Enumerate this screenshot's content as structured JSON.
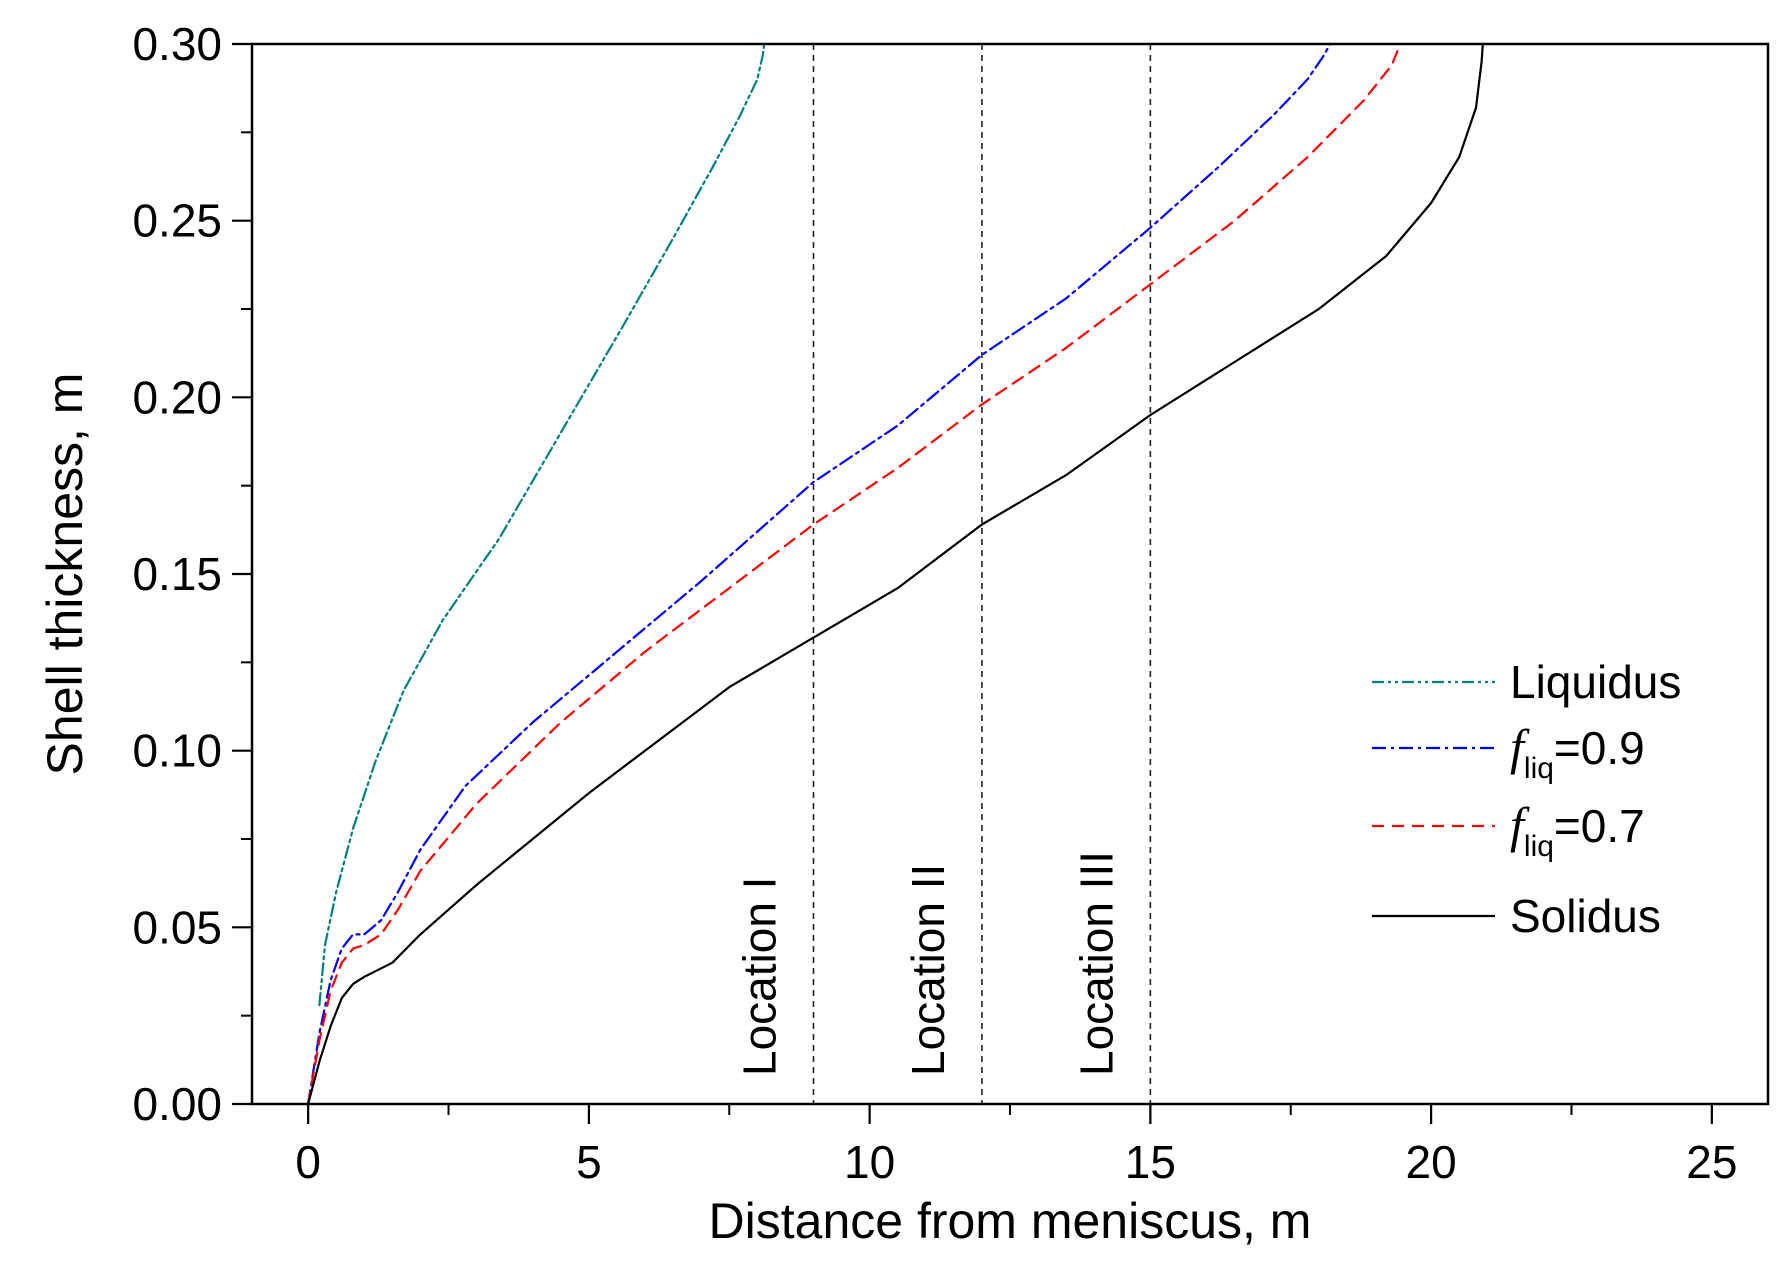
{
  "chart_data": {
    "type": "line",
    "title": "",
    "xlabel": "Distance from meniscus, m",
    "ylabel": "Shell thickness, m",
    "xlim": [
      -1,
      26
    ],
    "ylim": [
      0,
      0.3
    ],
    "xticks": [
      0,
      5,
      10,
      15,
      20,
      25
    ],
    "xtick_labels": [
      "0",
      "5",
      "10",
      "15",
      "20",
      "25"
    ],
    "x_minor_step": 2.5,
    "yticks": [
      0.0,
      0.05,
      0.1,
      0.15,
      0.2,
      0.25,
      0.3
    ],
    "ytick_labels": [
      "0.00",
      "0.05",
      "0.10",
      "0.15",
      "0.20",
      "0.25",
      "0.30"
    ],
    "y_minor_step": 0.025,
    "grid": false,
    "legend_position": "right",
    "series": [
      {
        "name": "Liquidus",
        "color": "#008080",
        "dash": "dash-dot-dot",
        "x": [
          0.2,
          0.3,
          0.5,
          0.8,
          1.2,
          1.7,
          2.4,
          3.4,
          4.5,
          5.6,
          6.5,
          7.2,
          7.7,
          8.0,
          8.1,
          8.12
        ],
        "y": [
          0.028,
          0.045,
          0.06,
          0.078,
          0.097,
          0.117,
          0.137,
          0.16,
          0.19,
          0.22,
          0.245,
          0.265,
          0.28,
          0.29,
          0.297,
          0.3
        ]
      },
      {
        "name": "f_liq=0.9",
        "label_prefix": "f",
        "label_sub": "liq",
        "label_suffix": "=0.9",
        "color": "#0000ff",
        "dash": "dash-dot",
        "x": [
          0.0,
          0.2,
          0.4,
          0.6,
          0.8,
          1.0,
          1.3,
          1.6,
          2.0,
          2.8,
          4.0,
          5.5,
          7.0,
          9.0,
          10.5,
          12.0,
          13.5,
          15.0,
          16.2,
          17.2,
          17.8,
          18.1,
          18.2
        ],
        "y": [
          0.0,
          0.02,
          0.035,
          0.044,
          0.048,
          0.048,
          0.052,
          0.06,
          0.072,
          0.09,
          0.108,
          0.128,
          0.148,
          0.176,
          0.192,
          0.212,
          0.228,
          0.248,
          0.265,
          0.28,
          0.29,
          0.297,
          0.3
        ]
      },
      {
        "name": "f_liq=0.7",
        "label_prefix": "f",
        "label_sub": "liq",
        "label_suffix": "=0.7",
        "color": "#ff0000",
        "dash": "dash",
        "x": [
          0.0,
          0.2,
          0.4,
          0.6,
          0.8,
          1.0,
          1.3,
          1.6,
          2.0,
          3.0,
          4.5,
          6.0,
          7.5,
          9.0,
          10.5,
          12.0,
          13.5,
          15.0,
          16.5,
          17.8,
          18.8,
          19.3,
          19.4
        ],
        "y": [
          0.0,
          0.018,
          0.032,
          0.04,
          0.044,
          0.045,
          0.048,
          0.055,
          0.066,
          0.085,
          0.108,
          0.128,
          0.146,
          0.164,
          0.18,
          0.198,
          0.214,
          0.232,
          0.25,
          0.268,
          0.284,
          0.294,
          0.298
        ]
      },
      {
        "name": "Solidus",
        "color": "#000000",
        "dash": "solid",
        "x": [
          0.0,
          0.2,
          0.4,
          0.6,
          0.8,
          1.0,
          1.5,
          2.0,
          3.0,
          4.0,
          5.0,
          6.0,
          7.5,
          9.0,
          10.5,
          12.0,
          13.5,
          15.0,
          16.5,
          18.0,
          19.2,
          20.0,
          20.5,
          20.8,
          20.9,
          20.92
        ],
        "y": [
          0.0,
          0.012,
          0.022,
          0.03,
          0.034,
          0.036,
          0.04,
          0.048,
          0.062,
          0.075,
          0.088,
          0.1,
          0.118,
          0.132,
          0.146,
          0.164,
          0.178,
          0.195,
          0.21,
          0.225,
          0.24,
          0.255,
          0.268,
          0.282,
          0.295,
          0.3
        ]
      }
    ],
    "vertical_lines": [
      {
        "x": 9,
        "label": "Location I"
      },
      {
        "x": 12,
        "label": "Location II"
      },
      {
        "x": 15,
        "label": "Location III"
      }
    ]
  }
}
